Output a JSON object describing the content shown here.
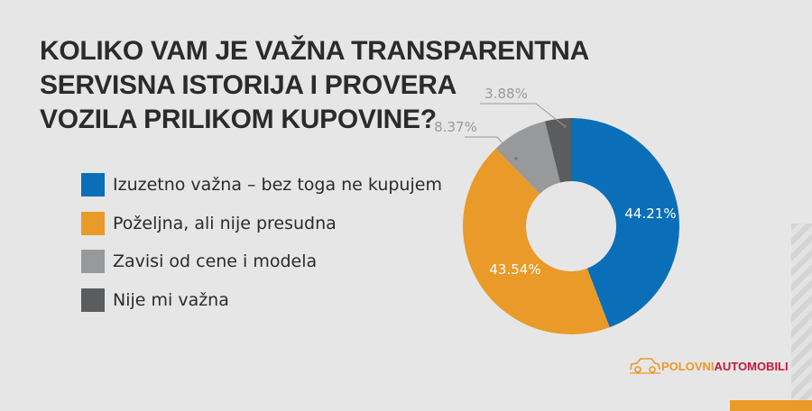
{
  "chart_data": {
    "type": "pie",
    "variant": "donut",
    "title": [
      "KOLIKO VAM JE VAŽNA TRANSPARENTNA",
      "SERVISNA ISTORIJA I PROVERA",
      "VOZILA PRILIKOM KUPOVINE?"
    ],
    "legend_position": "left",
    "slices": [
      {
        "label": "Izuzetno važna – bez toga ne kupujem",
        "value": 44.21,
        "value_label": "44.21%",
        "color": "#0a6fb8"
      },
      {
        "label": "Poželjna, ali nije presudna",
        "value": 43.54,
        "value_label": "43.54%",
        "color": "#e99a28"
      },
      {
        "label": "Zavisi od cene i modela",
        "value": 8.37,
        "value_label": "8.37%",
        "color": "#98999b"
      },
      {
        "label": "Nije mi važna",
        "value": 3.88,
        "value_label": "3.88%",
        "color": "#5b5c5e"
      }
    ]
  },
  "brand": {
    "logo_part1": "POLOVNI",
    "logo_part2": "AUTOMOBILI",
    "accent": "#e99a28",
    "secondary": "#c8173b"
  }
}
